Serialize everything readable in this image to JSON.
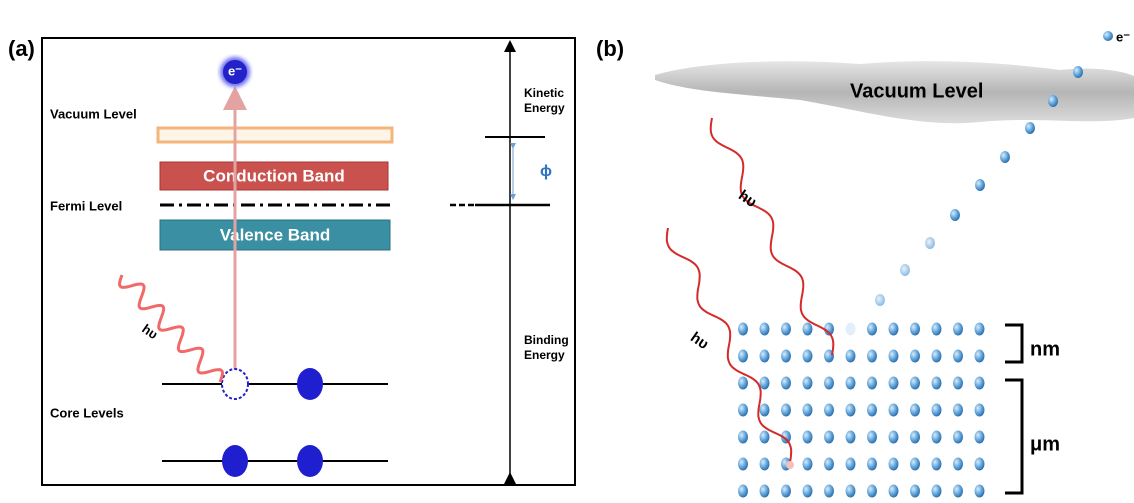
{
  "panel_a": {
    "label": "(a)",
    "electron": "e⁻",
    "vacuum_level": "Vacuum Level",
    "conduction_band": "Conduction Band",
    "fermi_level": "Fermi Level",
    "valence_band": "Valence Band",
    "photon": "hυ",
    "core_levels": "Core Levels",
    "kinetic_energy": "Kinetic Energy",
    "work_function": "ϕ",
    "binding_energy": "Binding Energy"
  },
  "panel_b": {
    "label": "(b)",
    "electron": "e⁻",
    "vacuum_level": "Vacuum Level",
    "photons": [
      "hυ",
      "hυ"
    ],
    "depth_labels": [
      "nm",
      "μm"
    ]
  }
}
